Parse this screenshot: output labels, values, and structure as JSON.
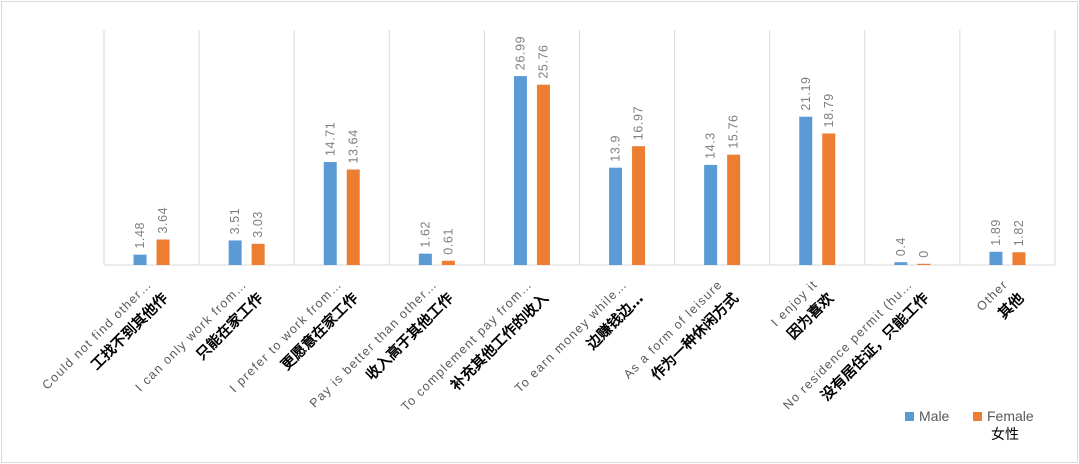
{
  "chart_data": {
    "type": "bar",
    "categories": [
      {
        "en": "Could not find other…",
        "zh": "工找不到其他作"
      },
      {
        "en": "I can only work from…",
        "zh": "只能在家工作"
      },
      {
        "en": "I prefer to work from…",
        "zh": "更愿意在家工作"
      },
      {
        "en": "Pay is better than other…",
        "zh": "收入高于其他工作"
      },
      {
        "en": "To complement pay from…",
        "zh": "补充其他工作的收入"
      },
      {
        "en": "To earn money while…",
        "zh": "边赚钱边…"
      },
      {
        "en": "As a form of leisure",
        "zh": "作为一种休闲方式"
      },
      {
        "en": "I enjoy it",
        "zh": "因为喜欢"
      },
      {
        "en": "No residence permit (hu…",
        "zh": "没有居住证，只能工作"
      },
      {
        "en": "Other",
        "zh": "其他"
      }
    ],
    "series": [
      {
        "name": "Male",
        "values": [
          1.48,
          3.51,
          14.71,
          1.62,
          26.99,
          13.9,
          14.3,
          21.19,
          0.4,
          1.89
        ],
        "labels": [
          "1.48",
          "3.51",
          "14.71",
          "1.62",
          "26.99",
          "13.9",
          "14.3",
          "21.19",
          "0.4",
          "1.89"
        ],
        "color": "#5b9bd5"
      },
      {
        "name": "Female",
        "values": [
          3.64,
          3.03,
          13.64,
          0.61,
          25.76,
          16.97,
          15.76,
          18.79,
          0,
          1.82
        ],
        "labels": [
          "3.64",
          "3.03",
          "13.64",
          "0.61",
          "25.76",
          "16.97",
          "15.76",
          "18.79",
          "0",
          "1.82"
        ],
        "color": "#ed7d31"
      }
    ],
    "legend": {
      "position": "bottom-right",
      "female_zh": "女性"
    },
    "ylim": [
      0,
      30
    ],
    "grid": false,
    "category_dividers": true,
    "title": "",
    "xlabel": "",
    "ylabel": ""
  }
}
